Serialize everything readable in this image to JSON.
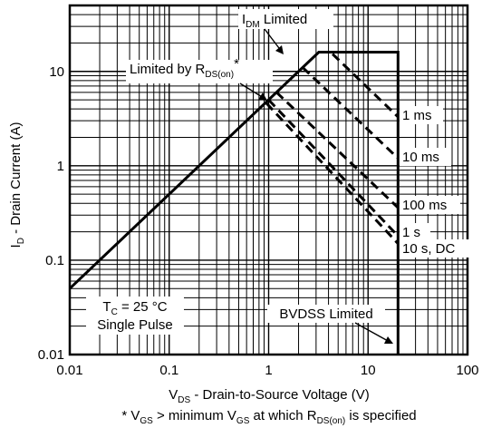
{
  "chart_data": {
    "type": "line",
    "title": "",
    "xlabel": {
      "main": "V",
      "sub": "DS",
      "rest": " - Drain-to-Source Voltage (V)"
    },
    "ylabel": {
      "main": "I",
      "sub": "D",
      "rest": " - Drain Current (A)"
    },
    "footnote": {
      "p1": "* V",
      "s1": "GS",
      "p2": " > minimum V",
      "s2": "GS",
      "p3": " at which R",
      "s3": "DS(on)",
      "p4": " is specified"
    },
    "x_scale": "log",
    "y_scale": "log",
    "xlim": [
      0.01,
      100
    ],
    "ylim": [
      0.01,
      50
    ],
    "grid": true,
    "x_ticks": [
      {
        "value": 0.01,
        "label": "0.01"
      },
      {
        "value": 0.1,
        "label": "0.1"
      },
      {
        "value": 1,
        "label": "1"
      },
      {
        "value": 10,
        "label": "10"
      },
      {
        "value": 100,
        "label": "100"
      }
    ],
    "y_ticks": [
      {
        "value": 0.01,
        "label": "0.01"
      },
      {
        "value": 0.1,
        "label": "0.1"
      },
      {
        "value": 1,
        "label": "1"
      },
      {
        "value": 10,
        "label": "10"
      }
    ],
    "series": [
      {
        "style": "solid",
        "points": [
          [
            0.01,
            0.05
          ],
          [
            3.2,
            16
          ],
          [
            20,
            16
          ],
          [
            20,
            0.01
          ]
        ]
      },
      {
        "style": "dashed",
        "points": [
          [
            3.2,
            16
          ],
          [
            4.2,
            16
          ],
          [
            20,
            3.3
          ]
        ]
      },
      {
        "style": "dashed",
        "points": [
          [
            2.2,
            11
          ],
          [
            20,
            1.2
          ]
        ]
      },
      {
        "style": "dashed",
        "points": [
          [
            1.2,
            6.0
          ],
          [
            20,
            0.36
          ]
        ]
      },
      {
        "style": "dashed",
        "points": [
          [
            1.0,
            5.0
          ],
          [
            20,
            0.18
          ]
        ]
      },
      {
        "style": "dashed",
        "points": [
          [
            0.95,
            4.6
          ],
          [
            20,
            0.15
          ]
        ]
      }
    ],
    "annotations": {
      "idm": {
        "main": "I",
        "sub": "DM",
        "rest": " Limited"
      },
      "rds": {
        "main": "Limited by R",
        "sub": "DS(on)",
        "rest": "*"
      },
      "curve_labels": [
        "1 ms",
        "10 ms",
        "100 ms",
        "1 s",
        "10 s, DC"
      ],
      "tc": {
        "main": "T",
        "sub": "C",
        "rest": " = 25 °C"
      },
      "pulse": "Single Pulse",
      "bvdss": "BVDSS Limited"
    }
  }
}
